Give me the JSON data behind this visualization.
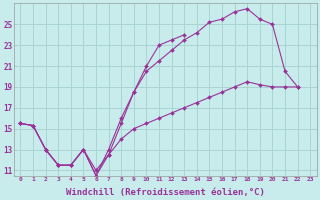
{
  "background_color": "#c8ecec",
  "grid_color": "#aad4d4",
  "line_color": "#993399",
  "marker_color": "#993399",
  "xlabel": "Windchill (Refroidissement éolien,°C)",
  "xlabel_fontsize": 6.5,
  "ylabel_ticks": [
    11,
    13,
    15,
    17,
    19,
    21,
    23,
    25
  ],
  "xtick_labels": [
    "0",
    "1",
    "2",
    "3",
    "4",
    "5",
    "6",
    "7",
    "8",
    "9",
    "10",
    "11",
    "12",
    "13",
    "14",
    "15",
    "16",
    "17",
    "18",
    "19",
    "20",
    "21",
    "22",
    "23"
  ],
  "xlim": [
    -0.5,
    23.5
  ],
  "ylim": [
    10.5,
    27.0
  ],
  "line1_x": [
    0,
    1,
    2,
    3,
    4,
    5,
    6,
    7,
    8,
    9,
    10,
    11,
    12,
    13,
    14,
    15,
    16,
    17,
    18,
    19,
    20,
    21,
    22
  ],
  "line1_y": [
    15.5,
    15.3,
    13.0,
    11.5,
    11.5,
    13.0,
    10.5,
    13.0,
    16.0,
    18.5,
    20.5,
    21.5,
    22.5,
    23.5,
    24.2,
    25.2,
    25.5,
    26.2,
    26.5,
    25.5,
    25.0,
    20.5,
    19.0
  ],
  "line2_x": [
    0,
    1,
    2,
    3,
    4,
    5,
    6,
    7,
    8,
    9,
    10,
    11,
    12,
    13
  ],
  "line2_y": [
    15.5,
    15.3,
    13.0,
    11.5,
    11.5,
    13.0,
    11.0,
    12.5,
    15.5,
    18.5,
    21.0,
    23.0,
    23.5,
    24.0
  ],
  "line3_x": [
    0,
    1,
    2,
    3,
    4,
    5,
    6,
    7,
    8,
    9,
    10,
    11,
    12,
    13,
    14,
    15,
    16,
    17,
    18,
    19,
    20,
    21,
    22
  ],
  "line3_y": [
    15.5,
    15.3,
    13.0,
    11.5,
    11.5,
    13.0,
    10.5,
    12.5,
    14.0,
    15.0,
    15.5,
    16.0,
    16.5,
    17.0,
    17.5,
    18.0,
    18.5,
    19.0,
    19.5,
    19.2,
    19.0,
    19.0,
    19.0
  ]
}
